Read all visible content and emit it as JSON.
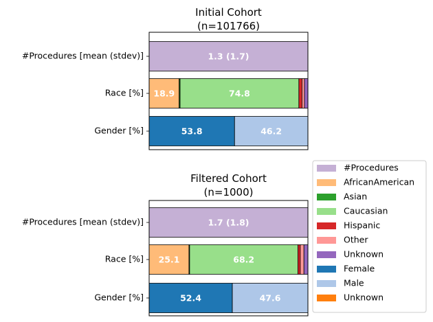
{
  "colors": {
    "procedures": "#c5b0d5",
    "africanamerican": "#ffbb78",
    "asian": "#2ca02c",
    "caucasian": "#98df8a",
    "hispanic": "#d62728",
    "other": "#ff9896",
    "unknown_race": "#9467bd",
    "female": "#1f77b4",
    "male": "#aec7e8",
    "unknown_gender": "#ff7f0e"
  },
  "chart_data": [
    {
      "type": "bar",
      "orientation": "horizontal-stacked",
      "title": "Initial Cohort\n(n=101766)",
      "categories": [
        "#Procedures [mean (stdev)]",
        "Race [%]",
        "Gender [%]"
      ],
      "xlim": [
        0,
        100
      ],
      "grid": false,
      "rows": [
        {
          "category": "#Procedures [mean (stdev)]",
          "segments": [
            {
              "series": "#Procedures",
              "value": 100,
              "label": "1.3 (1.7)"
            }
          ]
        },
        {
          "category": "Race [%]",
          "segments": [
            {
              "series": "AfricanAmerican",
              "value": 18.9,
              "label": "18.9"
            },
            {
              "series": "Asian",
              "value": 0.6,
              "label": ""
            },
            {
              "series": "Caucasian",
              "value": 74.8,
              "label": "74.8"
            },
            {
              "series": "Hispanic",
              "value": 2.0,
              "label": ""
            },
            {
              "series": "Other",
              "value": 1.5,
              "label": ""
            },
            {
              "series": "Unknown",
              "value": 2.2,
              "label": ""
            }
          ]
        },
        {
          "category": "Gender [%]",
          "segments": [
            {
              "series": "Female",
              "value": 53.8,
              "label": "53.8"
            },
            {
              "series": "Male",
              "value": 46.2,
              "label": "46.2"
            },
            {
              "series": "Unknown",
              "value": 0.0,
              "label": ""
            }
          ]
        }
      ]
    },
    {
      "type": "bar",
      "orientation": "horizontal-stacked",
      "title": "Filtered Cohort\n(n=1000)",
      "categories": [
        "#Procedures [mean (stdev)]",
        "Race [%]",
        "Gender [%]"
      ],
      "xlim": [
        0,
        100
      ],
      "grid": false,
      "rows": [
        {
          "category": "#Procedures [mean (stdev)]",
          "segments": [
            {
              "series": "#Procedures",
              "value": 100,
              "label": "1.7 (1.8)"
            }
          ]
        },
        {
          "category": "Race [%]",
          "segments": [
            {
              "series": "AfricanAmerican",
              "value": 25.1,
              "label": "25.1"
            },
            {
              "series": "Asian",
              "value": 0.4,
              "label": ""
            },
            {
              "series": "Caucasian",
              "value": 68.2,
              "label": "68.2"
            },
            {
              "series": "Hispanic",
              "value": 1.5,
              "label": ""
            },
            {
              "series": "Other",
              "value": 2.3,
              "label": ""
            },
            {
              "series": "Unknown",
              "value": 2.5,
              "label": ""
            }
          ]
        },
        {
          "category": "Gender [%]",
          "segments": [
            {
              "series": "Female",
              "value": 52.4,
              "label": "52.4"
            },
            {
              "series": "Male",
              "value": 47.6,
              "label": "47.6"
            },
            {
              "series": "Unknown",
              "value": 0.0,
              "label": ""
            }
          ]
        }
      ]
    }
  ],
  "legend": {
    "placement": "right",
    "entries": [
      {
        "label": "#Procedures",
        "color": "#c5b0d5"
      },
      {
        "label": "AfricanAmerican",
        "color": "#ffbb78"
      },
      {
        "label": "Asian",
        "color": "#2ca02c"
      },
      {
        "label": "Caucasian",
        "color": "#98df8a"
      },
      {
        "label": "Hispanic",
        "color": "#d62728"
      },
      {
        "label": "Other",
        "color": "#ff9896"
      },
      {
        "label": "Unknown",
        "color": "#9467bd"
      },
      {
        "label": "Female",
        "color": "#1f77b4"
      },
      {
        "label": "Male",
        "color": "#aec7e8"
      },
      {
        "label": "Unknown",
        "color": "#ff7f0e"
      }
    ]
  }
}
